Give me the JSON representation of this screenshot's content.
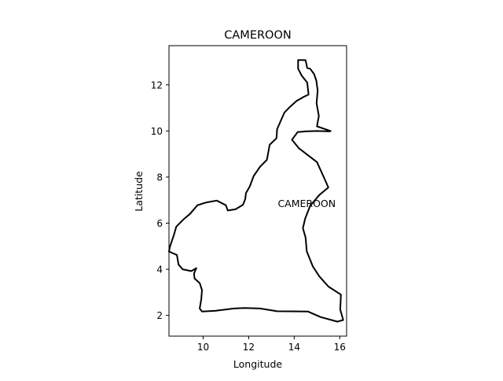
{
  "title": "CAMEROON",
  "xlabel": "Longitude",
  "ylabel": "Latitude",
  "country_label": "CAMEROON",
  "chart_data": {
    "type": "map",
    "title": "CAMEROON",
    "xlabel": "Longitude",
    "ylabel": "Latitude",
    "xlim": [
      8.5,
      16.3
    ],
    "ylim": [
      1.1,
      13.7
    ],
    "xticks": [
      10,
      12,
      14,
      16
    ],
    "yticks": [
      2,
      4,
      6,
      8,
      10,
      12
    ],
    "grid": false,
    "outline_color": "#000000",
    "annotations": [
      {
        "text": "CAMEROON",
        "lon": 14.55,
        "lat": 6.85
      }
    ],
    "outline": [
      [
        14.17,
        13.08
      ],
      [
        14.5,
        13.07
      ],
      [
        14.57,
        12.73
      ],
      [
        14.7,
        12.7
      ],
      [
        14.87,
        12.47
      ],
      [
        14.97,
        12.18
      ],
      [
        15.03,
        11.75
      ],
      [
        14.98,
        11.2
      ],
      [
        15.08,
        10.65
      ],
      [
        15.0,
        10.2
      ],
      [
        15.6,
        10.0
      ],
      [
        15.55,
        9.98
      ],
      [
        15.0,
        10.0
      ],
      [
        14.5,
        9.98
      ],
      [
        14.15,
        9.95
      ],
      [
        13.9,
        9.62
      ],
      [
        14.2,
        9.25
      ],
      [
        14.6,
        8.95
      ],
      [
        15.0,
        8.65
      ],
      [
        15.25,
        8.1
      ],
      [
        15.5,
        7.55
      ],
      [
        15.1,
        7.22
      ],
      [
        14.7,
        6.75
      ],
      [
        14.48,
        6.2
      ],
      [
        14.38,
        5.78
      ],
      [
        14.5,
        5.38
      ],
      [
        14.55,
        4.78
      ],
      [
        14.82,
        4.12
      ],
      [
        15.1,
        3.7
      ],
      [
        15.5,
        3.25
      ],
      [
        16.05,
        2.9
      ],
      [
        16.02,
        2.25
      ],
      [
        16.15,
        1.8
      ],
      [
        15.9,
        1.73
      ],
      [
        15.15,
        1.93
      ],
      [
        14.6,
        2.17
      ],
      [
        13.25,
        2.18
      ],
      [
        12.5,
        2.3
      ],
      [
        11.82,
        2.32
      ],
      [
        11.35,
        2.3
      ],
      [
        10.55,
        2.2
      ],
      [
        9.95,
        2.17
      ],
      [
        9.85,
        2.3
      ],
      [
        9.92,
        2.7
      ],
      [
        9.95,
        3.1
      ],
      [
        9.85,
        3.4
      ],
      [
        9.62,
        3.6
      ],
      [
        9.6,
        3.82
      ],
      [
        9.7,
        4.05
      ],
      [
        9.48,
        3.92
      ],
      [
        9.1,
        4.0
      ],
      [
        8.92,
        4.2
      ],
      [
        8.85,
        4.62
      ],
      [
        8.5,
        4.77
      ],
      [
        8.55,
        5.0
      ],
      [
        8.72,
        5.5
      ],
      [
        8.82,
        5.85
      ],
      [
        9.18,
        6.2
      ],
      [
        9.42,
        6.4
      ],
      [
        9.75,
        6.78
      ],
      [
        10.15,
        6.9
      ],
      [
        10.6,
        6.98
      ],
      [
        11.0,
        6.78
      ],
      [
        11.08,
        6.55
      ],
      [
        11.42,
        6.6
      ],
      [
        11.75,
        6.8
      ],
      [
        11.85,
        7.05
      ],
      [
        11.88,
        7.3
      ],
      [
        12.05,
        7.6
      ],
      [
        12.22,
        8.05
      ],
      [
        12.5,
        8.45
      ],
      [
        12.8,
        8.75
      ],
      [
        12.92,
        9.4
      ],
      [
        13.22,
        9.68
      ],
      [
        13.25,
        10.08
      ],
      [
        13.57,
        10.8
      ],
      [
        13.82,
        11.05
      ],
      [
        14.1,
        11.3
      ],
      [
        14.42,
        11.48
      ],
      [
        14.63,
        11.58
      ],
      [
        14.57,
        12.1
      ],
      [
        14.33,
        12.4
      ],
      [
        14.17,
        12.7
      ],
      [
        14.17,
        13.08
      ]
    ]
  }
}
